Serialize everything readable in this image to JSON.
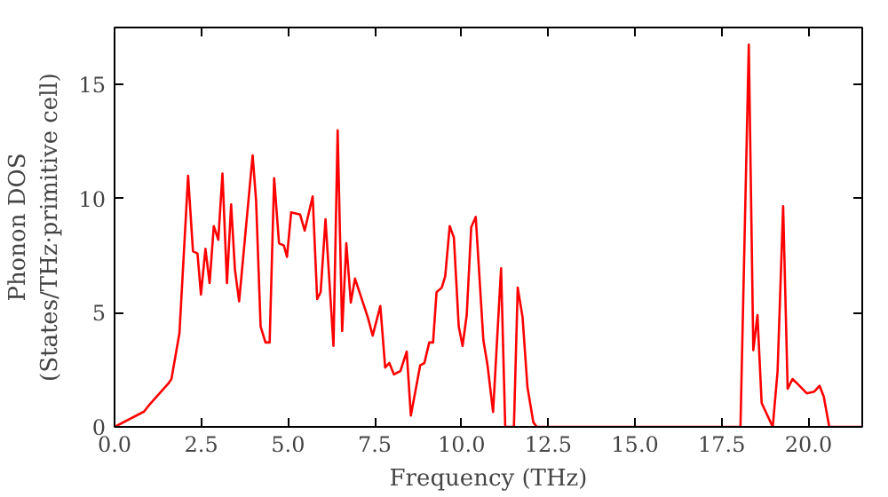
{
  "chart_data": {
    "type": "line",
    "xlabel": "Frequency (THz)",
    "ylabel": "Phonon DOS\n(States/THz·primitive cell)",
    "xlim": [
      0,
      21.55
    ],
    "ylim": [
      0,
      17.5
    ],
    "xticks": [
      {
        "value": 0,
        "label": "0.0"
      },
      {
        "value": 2.5,
        "label": "2.5"
      },
      {
        "value": 5,
        "label": "5.0"
      },
      {
        "value": 7.5,
        "label": "7.5"
      },
      {
        "value": 10,
        "label": "10.0"
      },
      {
        "value": 12.5,
        "label": "12.5"
      },
      {
        "value": 15,
        "label": "15.0"
      },
      {
        "value": 17.5,
        "label": "17.5"
      },
      {
        "value": 20,
        "label": "20.0"
      }
    ],
    "yticks": [
      0,
      5,
      10,
      15
    ],
    "grid": false,
    "marker": "none",
    "line_style": "solid",
    "series": [
      {
        "color": "#ff0000",
        "x": [
          0,
          0.85,
          1.02,
          1.55,
          1.64,
          1.87,
          2.12,
          2.26,
          2.39,
          2.49,
          2.62,
          2.74,
          2.86,
          2.99,
          3.11,
          3.24,
          3.36,
          3.47,
          3.59,
          3.98,
          4.08,
          4.21,
          4.35,
          4.47,
          4.6,
          4.74,
          4.88,
          4.97,
          5.09,
          5.35,
          5.48,
          5.71,
          5.84,
          5.94,
          6.08,
          6.31,
          6.43,
          6.56,
          6.68,
          6.81,
          6.93,
          7.3,
          7.44,
          7.66,
          7.8,
          7.92,
          8.05,
          8.24,
          8.42,
          8.54,
          8.81,
          8.93,
          9.07,
          9.18,
          9.28,
          9.43,
          9.53,
          9.66,
          9.78,
          9.92,
          10.03,
          10.15,
          10.28,
          10.41,
          10.63,
          10.75,
          10.91,
          11.14,
          11.26,
          11.51,
          11.62,
          11.76,
          11.9,
          12.07,
          12.17,
          18.04,
          18.28,
          18.41,
          18.53,
          18.65,
          18.97,
          19.11,
          19.27,
          19.4,
          19.54,
          19.72,
          19.95,
          20.17,
          20.32,
          20.44,
          20.6,
          21.55
        ],
        "values": [
          0,
          0.67,
          1.0,
          1.9,
          2.1,
          4.1,
          11.0,
          7.7,
          7.6,
          5.8,
          7.8,
          6.3,
          8.8,
          8.2,
          11.1,
          6.3,
          9.75,
          6.9,
          5.5,
          11.9,
          9.9,
          4.4,
          3.7,
          3.7,
          10.9,
          8.05,
          7.95,
          7.45,
          9.4,
          9.3,
          8.6,
          10.1,
          5.6,
          5.9,
          9.1,
          3.55,
          13.0,
          4.2,
          8.05,
          5.45,
          6.5,
          4.8,
          4.0,
          5.3,
          2.6,
          2.8,
          2.3,
          2.45,
          3.3,
          0.5,
          2.7,
          2.8,
          3.7,
          3.7,
          5.9,
          6.1,
          6.6,
          8.8,
          8.3,
          4.4,
          3.55,
          4.9,
          8.75,
          9.2,
          3.8,
          2.7,
          0.65,
          6.95,
          0,
          0,
          6.1,
          4.8,
          1.75,
          0.2,
          0,
          0,
          16.75,
          3.36,
          4.9,
          1.05,
          0,
          2.45,
          9.67,
          1.67,
          2.1,
          1.83,
          1.47,
          1.55,
          1.8,
          1.33,
          0,
          0
        ]
      }
    ]
  }
}
